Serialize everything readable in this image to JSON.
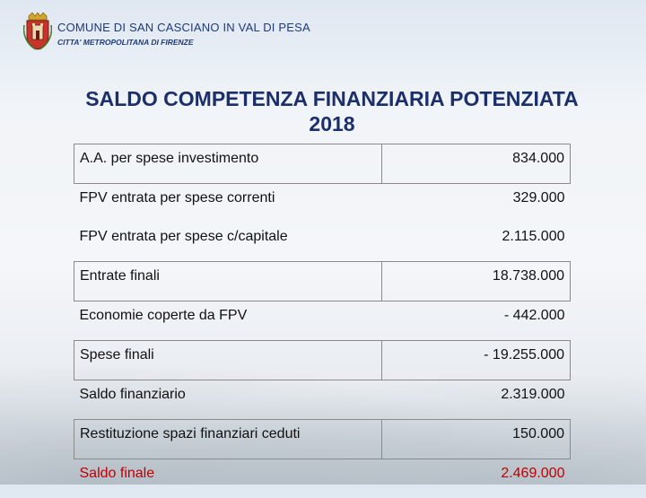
{
  "header": {
    "org_name": "COMUNE DI SAN CASCIANO IN VAL DI PESA",
    "org_sub": "CITTA' METROPOLITANA DI FIRENZE"
  },
  "title_line1": "SALDO COMPETENZA FINANZIARIA POTENZIATA",
  "title_line2": "2018",
  "colors": {
    "title": "#1b2f6b",
    "header": "#1f3a7a",
    "final_row": "#c00000"
  },
  "rows": [
    {
      "label": "A.A. per spese investimento",
      "value": "834.000"
    },
    {
      "label": "FPV entrata per spese correnti",
      "value": "329.000"
    },
    {
      "label": "FPV entrata per spese c/capitale",
      "value": "2.115.000"
    },
    {
      "label": "Entrate finali",
      "value": "18.738.000"
    },
    {
      "label": "Economie coperte da FPV",
      "value": "-   442.000"
    },
    {
      "label": "Spese finali",
      "value": "-   19.255.000"
    },
    {
      "label": "Saldo finanziario",
      "value": "2.319.000"
    },
    {
      "label": "Restituzione spazi finanziari ceduti",
      "value": "150.000"
    },
    {
      "label": "Saldo finale",
      "value": "2.469.000"
    }
  ]
}
